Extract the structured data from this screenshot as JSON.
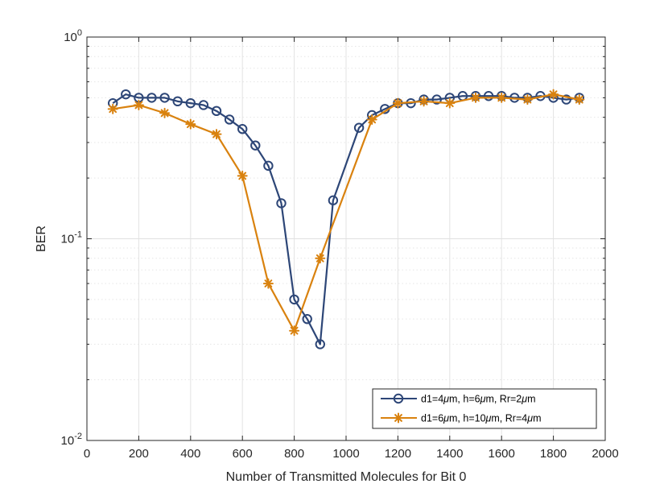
{
  "chart_data": {
    "type": "line",
    "title": "",
    "xlabel": "Number of  Transmitted Molecules for Bit 0",
    "ylabel": "BER",
    "xlim": [
      0,
      2000
    ],
    "ylim": [
      0.01,
      1
    ],
    "yscale": "log",
    "grid": true,
    "legend_position": "bottom-right",
    "xticks": [
      0,
      200,
      400,
      600,
      800,
      1000,
      1200,
      1400,
      1600,
      1800,
      2000
    ],
    "xtick_labels": [
      "0",
      "200",
      "400",
      "600",
      "800",
      "1000",
      "1200",
      "1400",
      "1600",
      "1800",
      "2000"
    ],
    "yticks": [
      {
        "value": 0.01,
        "base": "10",
        "exp": "-2"
      },
      {
        "value": 0.1,
        "base": "10",
        "exp": "-1"
      },
      {
        "value": 1,
        "base": "10",
        "exp": "0"
      }
    ],
    "series": [
      {
        "name": "d1=4μm, h=6μm, Rr=2μm",
        "legend": {
          "a": "d1=4",
          "b": "μ",
          "c": "m, h=6",
          "d": "μ",
          "e": "m, Rr=2",
          "f": "μ",
          "g": "m"
        },
        "color": "#2d4677",
        "marker": "circle",
        "x": [
          100,
          150,
          200,
          250,
          300,
          350,
          400,
          450,
          500,
          550,
          600,
          650,
          700,
          750,
          800,
          850,
          900,
          950,
          1050,
          1100,
          1150,
          1200,
          1250,
          1300,
          1350,
          1400,
          1450,
          1500,
          1550,
          1600,
          1650,
          1700,
          1750,
          1800,
          1850,
          1900
        ],
        "y": [
          0.47,
          0.52,
          0.5,
          0.5,
          0.5,
          0.48,
          0.47,
          0.46,
          0.43,
          0.39,
          0.35,
          0.29,
          0.23,
          0.15,
          0.05,
          0.04,
          0.03,
          0.155,
          0.355,
          0.41,
          0.44,
          0.47,
          0.47,
          0.49,
          0.49,
          0.5,
          0.51,
          0.51,
          0.51,
          0.51,
          0.5,
          0.5,
          0.51,
          0.5,
          0.49,
          0.5
        ]
      },
      {
        "name": "d1=6μm, h=10μm, Rr=4μm",
        "legend": {
          "a": "d1=6",
          "b": "μ",
          "c": "m, h=10",
          "d": "μ",
          "e": "m, Rr=4",
          "f": "μ",
          "g": "m"
        },
        "color": "#d9820f",
        "marker": "asterisk",
        "x": [
          100,
          200,
          300,
          400,
          500,
          600,
          700,
          800,
          900,
          1100,
          1200,
          1300,
          1400,
          1500,
          1600,
          1700,
          1800,
          1900
        ],
        "y": [
          0.44,
          0.46,
          0.42,
          0.37,
          0.33,
          0.205,
          0.06,
          0.035,
          0.08,
          0.39,
          0.47,
          0.48,
          0.47,
          0.5,
          0.5,
          0.49,
          0.52,
          0.49
        ]
      }
    ]
  }
}
